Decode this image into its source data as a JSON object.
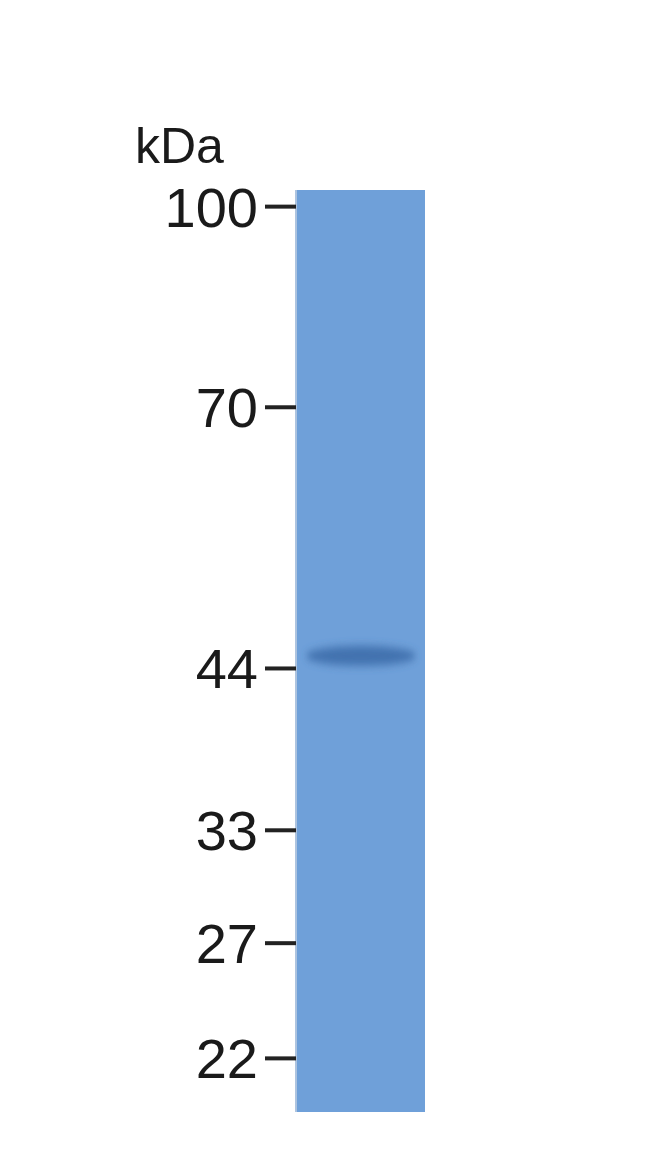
{
  "chart_data": {
    "type": "blot",
    "y_label": "kDa",
    "categories": [
      null
    ],
    "values": [
      45
    ],
    "color": "#3a6aa8",
    "log": "y",
    "ylim": [
      20,
      103
    ],
    "yticks": [
      100,
      70,
      44,
      33,
      27,
      22
    ]
  }
}
